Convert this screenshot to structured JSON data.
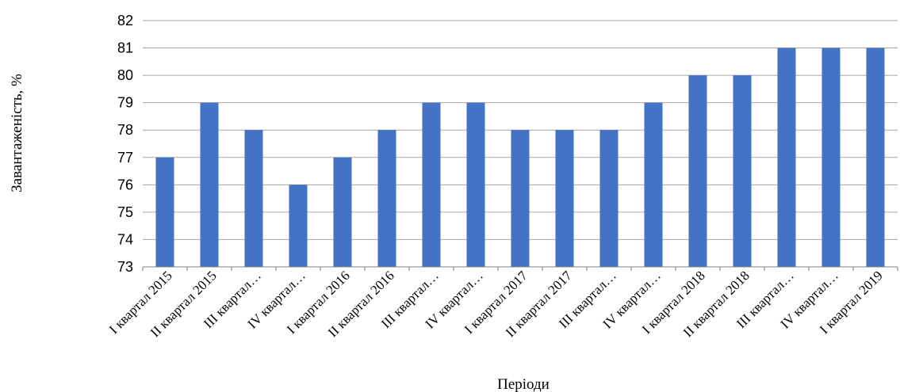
{
  "chart_data": {
    "type": "bar",
    "title": "",
    "xlabel": "Періоди",
    "ylabel": "Завантаженість, %",
    "ylim": [
      73,
      82
    ],
    "yticks": [
      73,
      74,
      75,
      76,
      77,
      78,
      79,
      80,
      81,
      82
    ],
    "grid": true,
    "legend": "none",
    "bar_color": "#4472c4",
    "categories": [
      "I квартал 2015",
      "II квартал 2015",
      "III квартал…",
      "IV квартал…",
      "I квартал 2016",
      "II квартал 2016",
      "III квартал…",
      "IV квартал…",
      "I квартал 2017",
      "II квартал 2017",
      "III квартал…",
      "IV квартал…",
      "I квартал 2018",
      "II квартал 2018",
      "III квартал…",
      "IV квартал…",
      "I квартал 2019"
    ],
    "values": [
      77,
      79,
      78,
      76,
      77,
      78,
      79,
      79,
      78,
      78,
      78,
      79,
      80,
      80,
      81,
      81,
      81
    ]
  }
}
